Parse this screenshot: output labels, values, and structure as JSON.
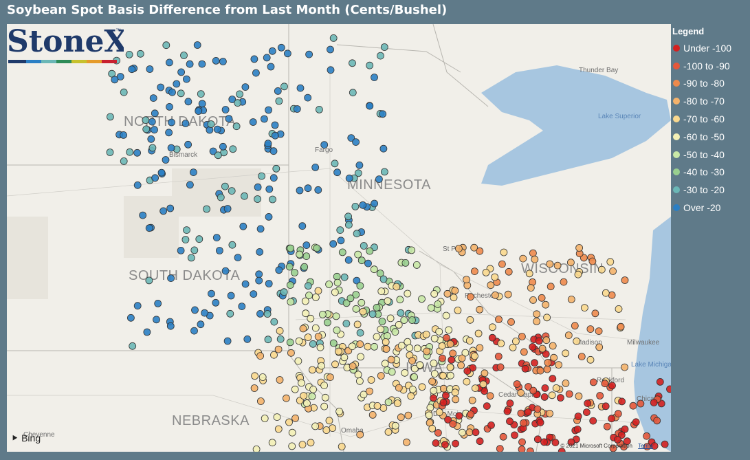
{
  "title": "Soybean Spot Basis Difference from Last Month (Cents/Bushel)",
  "legend": {
    "heading": "Legend",
    "items": [
      {
        "label": "Under -100",
        "color": "#d42020"
      },
      {
        "label": "-100 to -90",
        "color": "#e4573a"
      },
      {
        "label": "-90 to -80",
        "color": "#ee8a4c"
      },
      {
        "label": "-80 to -70",
        "color": "#f4b26b"
      },
      {
        "label": "-70 to -60",
        "color": "#f9d88e"
      },
      {
        "label": "-60 to -50",
        "color": "#f3f0b6"
      },
      {
        "label": "-50 to -40",
        "color": "#c9e8a6"
      },
      {
        "label": "-40 to -30",
        "color": "#99cf8f"
      },
      {
        "label": "-30 to -20",
        "color": "#6bb7b6"
      },
      {
        "label": "Over -20",
        "color": "#2b7fc4"
      }
    ]
  },
  "map": {
    "states": [
      "NORTH DAKOTA",
      "MINNESOTA",
      "SOUTH DAKOTA",
      "WISCONSIN",
      "IOWA",
      "NEBRASKA"
    ],
    "cities": [
      "Bismarck",
      "Fargo",
      "St Paul",
      "Rochester",
      "Madison",
      "Milwaukee",
      "Rockford",
      "Chicago",
      "Cedar Rapids",
      "Des Moines",
      "Omaha",
      "Cheyenne",
      "Thunder Bay"
    ],
    "water": [
      "Lake Superior",
      "Lake Michigan"
    ],
    "attribution": {
      "provider": "Bing",
      "copyright": "© 2021 Microsoft Corporation",
      "terms": "Terms"
    }
  },
  "logo": {
    "text": "StoneX",
    "tm": "™"
  },
  "markers": [
    {
      "region": "North Dakota",
      "level": "Over -20",
      "count": 95
    },
    {
      "region": "South Dakota",
      "level": "Over -20",
      "count": 80
    },
    {
      "region": "Minnesota west",
      "level": "Over -20",
      "count": 60
    },
    {
      "region": "Southwest Minnesota",
      "level": "-40 to -30",
      "count": 70
    },
    {
      "region": "Iowa north",
      "level": "-60 to -50",
      "count": 110
    },
    {
      "region": "Iowa central",
      "level": "-70 to -60",
      "count": 140
    },
    {
      "region": "Southeast Iowa",
      "level": "Under -100",
      "count": 80
    },
    {
      "region": "Wisconsin",
      "level": "-80 to -70",
      "count": 120
    },
    {
      "region": "Northern Illinois",
      "level": "Under -100",
      "count": 60
    }
  ]
}
